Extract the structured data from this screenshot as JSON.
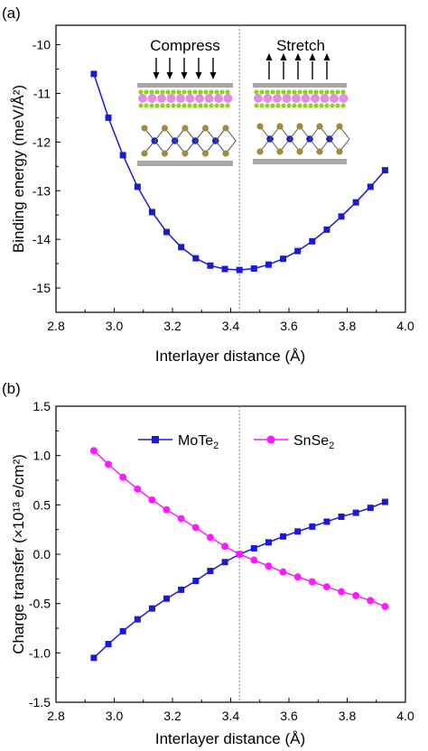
{
  "panel_a": {
    "label": "(a)",
    "ylabel": "Binding energy (meV/Å²)",
    "xlabel": "Interlayer distance (Å)",
    "inset": {
      "compress_label": "Compress",
      "stretch_label": "Stretch"
    }
  },
  "panel_b": {
    "label": "(b)",
    "ylabel": "Charge transfer (×10¹³ e/cm²)",
    "xlabel": "Interlayer distance (Å)",
    "legend": {
      "s1_base": "MoTe",
      "s1_sub": "2",
      "s2_base": "SnSe",
      "s2_sub": "2"
    }
  },
  "colors": {
    "blue": "#1a1ad6",
    "magenta": "#ff1aff",
    "refline": "#888888"
  },
  "chart_data": [
    {
      "type": "line",
      "xlabel": "Interlayer distance (Å)",
      "ylabel": "Binding energy (meV/Å²)",
      "xlim": [
        2.8,
        4.0
      ],
      "ylim": [
        -15.5,
        -9.6
      ],
      "xticks": [
        2.8,
        3.0,
        3.2,
        3.4,
        3.6,
        3.8,
        4.0
      ],
      "yticks": [
        -15,
        -14,
        -13,
        -12,
        -11,
        -10
      ],
      "reference_line_x": 3.43,
      "series": [
        {
          "x": [
            2.93,
            2.98,
            3.03,
            3.08,
            3.13,
            3.18,
            3.23,
            3.28,
            3.33,
            3.38,
            3.43,
            3.48,
            3.53,
            3.58,
            3.63,
            3.68,
            3.73,
            3.78,
            3.83,
            3.88,
            3.93
          ],
          "y": [
            -10.6,
            -11.5,
            -12.27,
            -12.92,
            -13.44,
            -13.85,
            -14.16,
            -14.39,
            -14.54,
            -14.61,
            -14.63,
            -14.6,
            -14.52,
            -14.4,
            -14.24,
            -14.04,
            -13.8,
            -13.53,
            -13.24,
            -12.92,
            -12.58
          ]
        }
      ]
    },
    {
      "type": "line",
      "xlabel": "Interlayer distance (Å)",
      "ylabel": "Charge transfer (×10¹³ e/cm²)",
      "xlim": [
        2.8,
        4.0
      ],
      "ylim": [
        -1.5,
        1.5
      ],
      "xticks": [
        2.8,
        3.0,
        3.2,
        3.4,
        3.6,
        3.8,
        4.0
      ],
      "yticks": [
        -1.5,
        -1.0,
        -0.5,
        0.0,
        0.5,
        1.0,
        1.5
      ],
      "reference_line_x": 3.43,
      "legend": "top-center",
      "series": [
        {
          "name": "MoTe2",
          "x": [
            2.93,
            2.98,
            3.03,
            3.08,
            3.13,
            3.18,
            3.23,
            3.28,
            3.33,
            3.38,
            3.43,
            3.48,
            3.53,
            3.58,
            3.63,
            3.68,
            3.73,
            3.78,
            3.83,
            3.88,
            3.93
          ],
          "values": [
            -1.05,
            -0.91,
            -0.78,
            -0.66,
            -0.55,
            -0.45,
            -0.36,
            -0.27,
            -0.17,
            -0.08,
            0.0,
            0.06,
            0.12,
            0.18,
            0.23,
            0.28,
            0.33,
            0.38,
            0.42,
            0.47,
            0.53
          ]
        },
        {
          "name": "SnSe2",
          "x": [
            2.93,
            2.98,
            3.03,
            3.08,
            3.13,
            3.18,
            3.23,
            3.28,
            3.33,
            3.38,
            3.43,
            3.48,
            3.53,
            3.58,
            3.63,
            3.68,
            3.73,
            3.78,
            3.83,
            3.88,
            3.93
          ],
          "values": [
            1.05,
            0.91,
            0.78,
            0.66,
            0.55,
            0.45,
            0.36,
            0.27,
            0.17,
            0.08,
            0.0,
            -0.06,
            -0.12,
            -0.18,
            -0.23,
            -0.28,
            -0.33,
            -0.38,
            -0.42,
            -0.47,
            -0.53
          ]
        }
      ]
    }
  ]
}
